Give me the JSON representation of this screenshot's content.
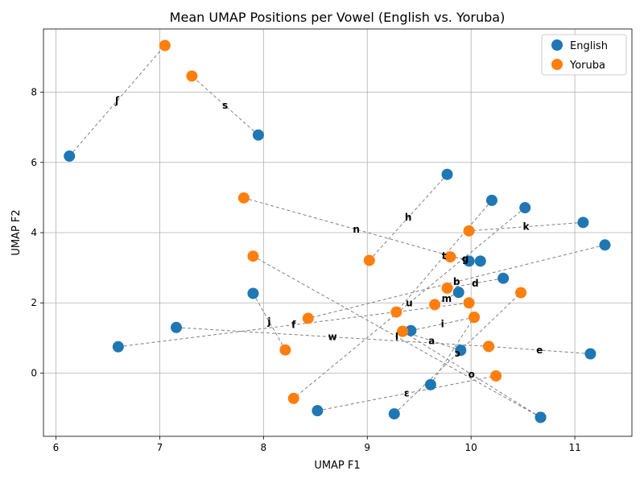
{
  "chart_data": {
    "type": "scatter",
    "title": "Mean UMAP Positions per Vowel (English vs. Yoruba)",
    "xlabel": "UMAP F1",
    "ylabel": "UMAP F2",
    "xlim": [
      5.88,
      11.55
    ],
    "ylim": [
      -1.8,
      9.8
    ],
    "xticks": [
      6,
      7,
      8,
      9,
      10,
      11
    ],
    "yticks": [
      0,
      2,
      4,
      6,
      8
    ],
    "grid": true,
    "legend_position": "top-right",
    "colors": {
      "English": "#1f77b4",
      "Yoruba": "#ff7f0e",
      "line": "#808080"
    },
    "series": [
      {
        "name": "English",
        "key": "en"
      },
      {
        "name": "Yoruba",
        "key": "yo"
      }
    ],
    "pairs": [
      {
        "label": "ʃ",
        "en": [
          6.13,
          6.18
        ],
        "yo": [
          7.05,
          9.33
        ]
      },
      {
        "label": "s",
        "en": [
          7.95,
          6.78
        ],
        "yo": [
          7.31,
          8.46
        ]
      },
      {
        "label": "h",
        "en": [
          9.77,
          5.66
        ],
        "yo": [
          9.02,
          3.21
        ]
      },
      {
        "label": "n",
        "en": [
          9.98,
          3.19
        ],
        "yo": [
          7.81,
          4.99
        ]
      },
      {
        "label": "t",
        "en": [
          10.2,
          4.92
        ],
        "yo": [
          9.28,
          1.74
        ]
      },
      {
        "label": "k",
        "en": [
          11.08,
          4.29
        ],
        "yo": [
          9.98,
          4.05
        ]
      },
      {
        "label": "b",
        "en": [
          11.29,
          3.65
        ],
        "yo": [
          8.43,
          1.56
        ]
      },
      {
        "label": "d",
        "en": [
          10.31,
          2.7
        ],
        "yo": [
          9.77,
          2.42
        ]
      },
      {
        "label": "g",
        "en": [
          10.09,
          3.19
        ],
        "yo": [
          9.8,
          3.31
        ]
      },
      {
        "label": "m",
        "en": [
          9.88,
          2.3
        ],
        "yo": [
          9.65,
          1.95
        ]
      },
      {
        "label": "f",
        "en": [
          6.6,
          0.75
        ],
        "yo": [
          9.98,
          2.0
        ]
      },
      {
        "label": "l",
        "en": [
          10.67,
          -1.26
        ],
        "yo": [
          7.9,
          3.33
        ]
      },
      {
        "label": "j",
        "en": [
          7.9,
          2.27
        ],
        "yo": [
          8.21,
          0.66
        ]
      },
      {
        "label": "i",
        "en": [
          9.42,
          1.21
        ],
        "yo": [
          10.03,
          1.59
        ]
      },
      {
        "label": "e",
        "en": [
          11.15,
          0.55
        ],
        "yo": [
          10.17,
          0.76
        ]
      },
      {
        "label": "w",
        "en": [
          7.16,
          1.3
        ],
        "yo": [
          10.17,
          0.76
        ]
      },
      {
        "label": "u",
        "en": [
          10.52,
          4.71
        ],
        "yo": [
          8.29,
          -0.72
        ]
      },
      {
        "label": "ɔ",
        "en": [
          9.26,
          -1.16
        ],
        "yo": [
          10.48,
          2.29
        ]
      },
      {
        "label": "a",
        "en": [
          9.9,
          0.65
        ],
        "yo": [
          9.34,
          1.19
        ]
      },
      {
        "label": "o",
        "en": [
          10.67,
          -1.26
        ],
        "yo": [
          9.34,
          1.19
        ]
      },
      {
        "label": "ɛ",
        "en": [
          8.52,
          -1.07
        ],
        "yo": [
          10.24,
          -0.08
        ]
      },
      {
        "label": "",
        "en": [
          9.61,
          -0.33
        ],
        "yo": [
          10.03,
          1.59
        ]
      }
    ]
  }
}
